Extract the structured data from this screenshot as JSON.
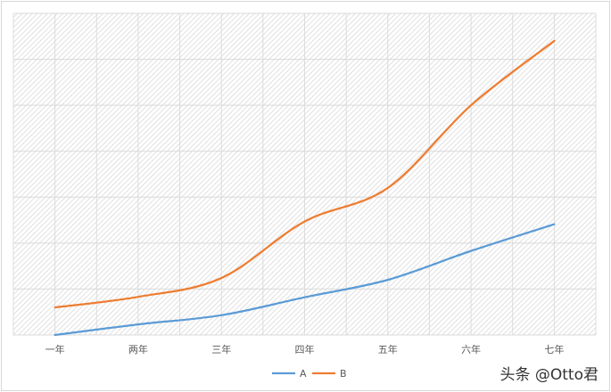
{
  "chart_data": {
    "type": "line",
    "smooth": true,
    "categories": [
      "一年",
      "两年",
      "三年",
      "四年",
      "五年",
      "六年",
      "七年"
    ],
    "series": [
      {
        "name": "A",
        "color": "#5b9bd5",
        "values": [
          0,
          0.23,
          0.43,
          0.82,
          1.2,
          1.83,
          2.41
        ]
      },
      {
        "name": "B",
        "color": "#ed7d31",
        "values": [
          0.6,
          0.83,
          1.24,
          2.47,
          3.2,
          5.0,
          6.4
        ]
      }
    ],
    "ylim": [
      0,
      7
    ],
    "y_tick_labels_shown": false,
    "grid": true,
    "plot_background": "diagonal hatch",
    "legend_position": "bottom"
  },
  "watermark": "头条 @Otto君"
}
